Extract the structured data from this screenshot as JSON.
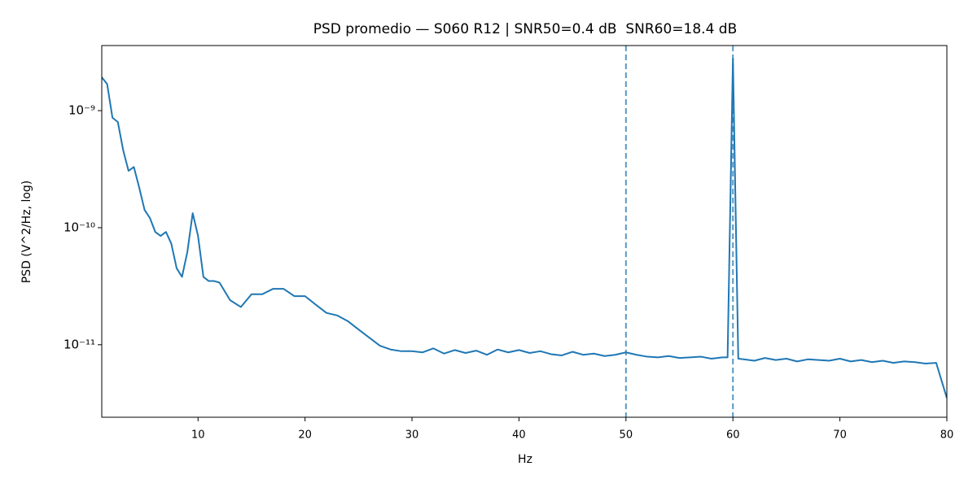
{
  "chart_data": {
    "type": "line",
    "title": "PSD promedio — S060 R12 | SNR50=0.4 dB  SNR60=18.4 dB",
    "x_label": "Hz",
    "y_label": "PSD (V^2/Hz, log)",
    "x": [
      1,
      1.5,
      2,
      2.5,
      3,
      3.5,
      4,
      4.5,
      5,
      5.5,
      6,
      6.5,
      7,
      7.5,
      8,
      8.5,
      9,
      9.5,
      10,
      10.5,
      11,
      11.5,
      12,
      13,
      14,
      15,
      16,
      17,
      18,
      19,
      20,
      21,
      22,
      23,
      24,
      25,
      26,
      27,
      28,
      29,
      30,
      31,
      32,
      33,
      34,
      35,
      36,
      37,
      38,
      39,
      40,
      41,
      42,
      43,
      44,
      45,
      46,
      47,
      48,
      49,
      50,
      51,
      52,
      53,
      54,
      55,
      56,
      57,
      58,
      59,
      59.5,
      60,
      60.5,
      61,
      62,
      63,
      64,
      65,
      66,
      67,
      68,
      69,
      70,
      71,
      72,
      73,
      74,
      75,
      76,
      77,
      78,
      79,
      80
    ],
    "values": [
      1.93e-09,
      1.69e-09,
      8.7e-10,
      8e-10,
      4.6e-10,
      3.06e-10,
      3.3e-10,
      2.2e-10,
      1.42e-10,
      1.21e-10,
      9.2e-11,
      8.5e-11,
      9.2e-11,
      7.3e-11,
      4.5e-11,
      3.8e-11,
      6.2e-11,
      1.33e-10,
      8.5e-11,
      3.8e-11,
      3.5e-11,
      3.5e-11,
      3.4e-11,
      2.4e-11,
      2.1e-11,
      2.7e-11,
      2.7e-11,
      3e-11,
      3e-11,
      2.6e-11,
      2.6e-11,
      2.2e-11,
      1.87e-11,
      1.78e-11,
      1.59e-11,
      1.35e-11,
      1.15e-11,
      9.8e-12,
      9.1e-12,
      8.8e-12,
      8.8e-12,
      8.6e-12,
      9.3e-12,
      8.4e-12,
      9e-12,
      8.5e-12,
      8.9e-12,
      8.2e-12,
      9.1e-12,
      8.6e-12,
      9e-12,
      8.5e-12,
      8.8e-12,
      8.3e-12,
      8.1e-12,
      8.7e-12,
      8.2e-12,
      8.4e-12,
      8e-12,
      8.2e-12,
      8.6e-12,
      8.2e-12,
      7.9e-12,
      7.8e-12,
      8e-12,
      7.7e-12,
      7.8e-12,
      7.9e-12,
      7.6e-12,
      7.8e-12,
      7.8e-12,
      2.78e-09,
      7.6e-12,
      7.5e-12,
      7.3e-12,
      7.7e-12,
      7.4e-12,
      7.6e-12,
      7.2e-12,
      7.5e-12,
      7.4e-12,
      7.3e-12,
      7.6e-12,
      7.2e-12,
      7.4e-12,
      7.1e-12,
      7.3e-12,
      7e-12,
      7.2e-12,
      7.1e-12,
      6.9e-12,
      7e-12,
      3.5e-12
    ],
    "color": "#1f77b4",
    "vlines": [
      50,
      60
    ],
    "xlim": [
      1,
      80
    ],
    "xticks": [
      10,
      20,
      30,
      40,
      50,
      60,
      70,
      80
    ],
    "ylim": [
      2.4e-12,
      3.6e-09
    ],
    "log_y": true,
    "yticks": [
      {
        "value": 1e-11,
        "label": "10⁻¹¹"
      },
      {
        "value": 1e-10,
        "label": "10⁻¹⁰"
      },
      {
        "value": 1e-09,
        "label": "10⁻⁹"
      }
    ]
  }
}
